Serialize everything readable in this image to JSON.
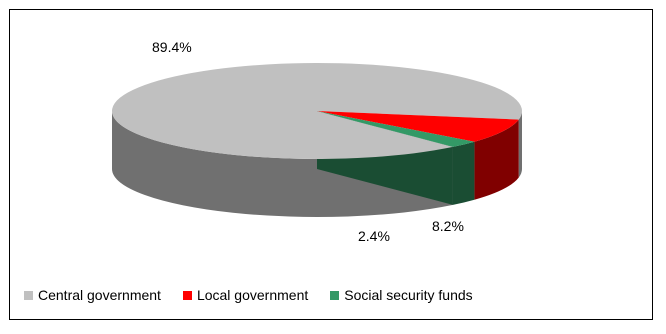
{
  "chart_data": {
    "type": "pie",
    "title": "",
    "three_d": true,
    "slices": [
      {
        "label": "Central government",
        "value": 89.4,
        "value_label": "89.4%",
        "color": "#c0c0c0",
        "side_color": "#707070"
      },
      {
        "label": "Local government",
        "value": 8.2,
        "value_label": "8.2%",
        "color": "#ff0000",
        "side_color": "#800000"
      },
      {
        "label": "Social security funds",
        "value": 2.4,
        "value_label": "2.4%",
        "color": "#339966",
        "side_color": "#1a4d33"
      }
    ],
    "legend": {
      "position": "bottom"
    }
  }
}
